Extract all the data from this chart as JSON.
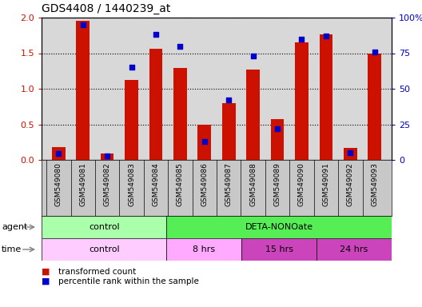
{
  "title": "GDS4408 / 1440239_at",
  "samples": [
    "GSM549080",
    "GSM549081",
    "GSM549082",
    "GSM549083",
    "GSM549084",
    "GSM549085",
    "GSM549086",
    "GSM549087",
    "GSM549088",
    "GSM549089",
    "GSM549090",
    "GSM549091",
    "GSM549092",
    "GSM549093"
  ],
  "red_values": [
    0.18,
    1.95,
    0.09,
    1.12,
    1.56,
    1.29,
    0.5,
    0.8,
    1.27,
    0.57,
    1.65,
    1.76,
    0.17,
    1.49
  ],
  "blue_pct": [
    4.5,
    95,
    3,
    65,
    88,
    80,
    13,
    42,
    73,
    22,
    85,
    87,
    5,
    76
  ],
  "ylim_left": [
    0,
    2
  ],
  "ylim_right": [
    0,
    100
  ],
  "yticks_left": [
    0,
    0.5,
    1.0,
    1.5,
    2.0
  ],
  "yticks_right": [
    0,
    25,
    50,
    75,
    100
  ],
  "agent_groups": [
    {
      "label": "control",
      "start": 0,
      "end": 5,
      "color": "#aaffaa"
    },
    {
      "label": "DETA-NONOate",
      "start": 5,
      "end": 14,
      "color": "#55ee55"
    }
  ],
  "time_groups": [
    {
      "label": "control",
      "start": 0,
      "end": 5,
      "color": "#ffccff"
    },
    {
      "label": "8 hrs",
      "start": 5,
      "end": 8,
      "color": "#ffaaff"
    },
    {
      "label": "15 hrs",
      "start": 8,
      "end": 11,
      "color": "#dd44cc"
    },
    {
      "label": "24 hrs",
      "start": 11,
      "end": 14,
      "color": "#dd44cc"
    }
  ],
  "bar_color": "#cc1100",
  "dot_color": "#0000cc",
  "bg_color": "#ffffff",
  "tick_label_color_left": "#cc1100",
  "tick_label_color_right": "#0000cc",
  "bar_width": 0.55,
  "plot_bg": "#d8d8d8",
  "x_label_bg": "#c8c8c8"
}
